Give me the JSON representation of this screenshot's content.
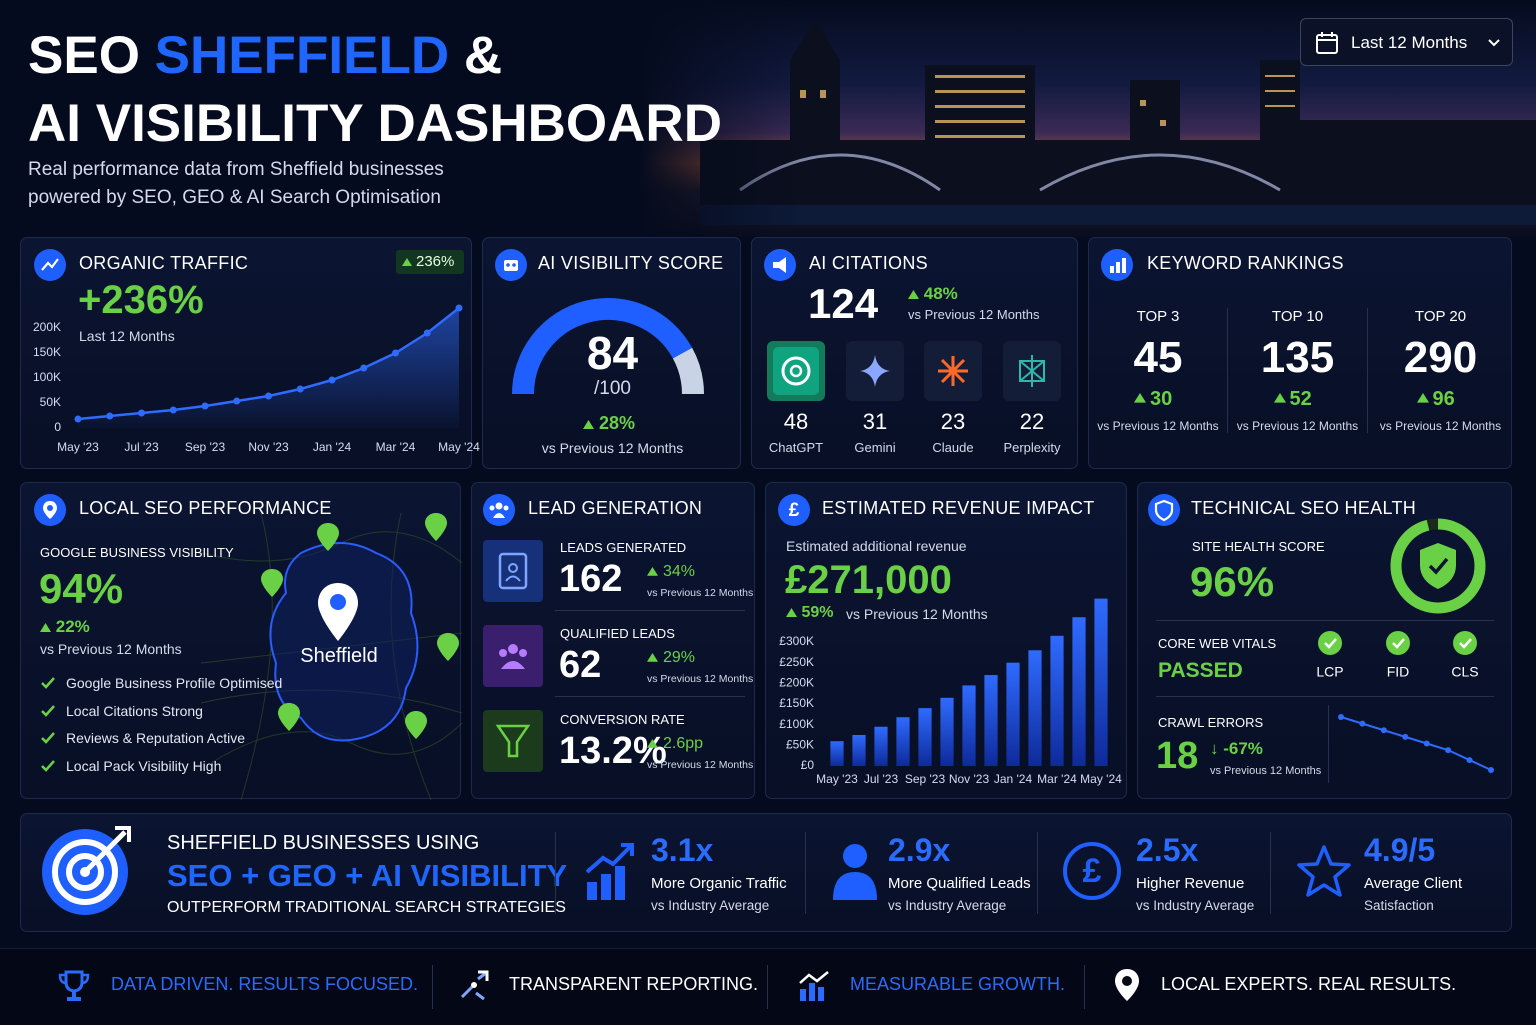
{
  "header": {
    "title_word_1": "SEO",
    "title_word_2": "SHEFFIELD",
    "title_word_3": "&",
    "title_line_2": "AI VISIBILITY DASHBOARD",
    "subtitle_line_1": "Real performance data from Sheffield businesses",
    "subtitle_line_2": "powered by SEO, GEO & AI Search Optimisation"
  },
  "date_filter": "Last 12 Months",
  "organic_traffic": {
    "title": "ORGANIC TRAFFIC",
    "badge": "236%",
    "headline": "+236%",
    "period": "Last 12 Months",
    "chart": {
      "type": "line",
      "categories": [
        "May '23",
        null,
        "Jul '23",
        null,
        "Sep '23",
        null,
        "Nov '23",
        null,
        "Jan '24",
        null,
        "Mar '24",
        null,
        "May '24"
      ],
      "values": [
        18000,
        24000,
        30000,
        36000,
        44000,
        54000,
        64000,
        78000,
        96000,
        120000,
        150000,
        190000,
        240000
      ],
      "color": "#2f6bff",
      "ylim": [
        0,
        250000
      ],
      "yticks": [
        0,
        {
          "value": 50000,
          "label": "50K"
        },
        {
          "value": 100000,
          "label": "100K"
        },
        {
          "value": 150000,
          "label": "150K"
        },
        {
          "value": 200000,
          "label": "200K"
        }
      ]
    }
  },
  "ai_visibility": {
    "title": "AI VISIBILITY SCORE",
    "score": 84,
    "scale": "/100",
    "change": "28%",
    "comparison": "vs Previous 12 Months"
  },
  "ai_citations": {
    "title": "AI CITATIONS",
    "total": 124,
    "change": "48%",
    "comparison": "vs Previous 12 Months",
    "platforms": [
      {
        "name": "ChatGPT",
        "count": 48
      },
      {
        "name": "Gemini",
        "count": 31
      },
      {
        "name": "Claude",
        "count": 23
      },
      {
        "name": "Perplexity",
        "count": 22
      }
    ]
  },
  "keyword_rankings": {
    "title": "KEYWORD RANKINGS",
    "groups": [
      {
        "label": "TOP 3",
        "count": 45,
        "change": 30,
        "comparison": "vs Previous 12 Months"
      },
      {
        "label": "TOP 10",
        "count": 135,
        "change": 52,
        "comparison": "vs Previous 12 Months"
      },
      {
        "label": "TOP 20",
        "count": 290,
        "change": 96,
        "comparison": "vs Previous 12 Months"
      }
    ]
  },
  "local_seo": {
    "title": "LOCAL SEO PERFORMANCE",
    "metric_label": "GOOGLE BUSINESS VISIBILITY",
    "value": "94%",
    "change": "22%",
    "comparison": "vs Previous 12 Months",
    "checklist": [
      "Google Business Profile Optimised",
      "Local Citations Strong",
      "Reviews & Reputation Active",
      "Local Pack Visibility High"
    ],
    "map_label": "Sheffield"
  },
  "lead_generation": {
    "title": "LEAD GENERATION",
    "items": [
      {
        "label": "LEADS GENERATED",
        "value": 162,
        "change": "34%",
        "comparison": "vs Previous 12 Months"
      },
      {
        "label": "QUALIFIED LEADS",
        "value": 62,
        "change": "29%",
        "comparison": "vs Previous 12 Months"
      },
      {
        "label": "CONVERSION RATE",
        "value": "13.2%",
        "change": "2.6pp",
        "comparison": "vs Previous 12 Months"
      }
    ]
  },
  "revenue": {
    "title": "ESTIMATED REVENUE IMPACT",
    "label": "Estimated additional revenue",
    "value": "£271,000",
    "change": "59%",
    "comparison": "vs Previous 12 Months",
    "chart": {
      "type": "bar",
      "categories": [
        "May '23",
        null,
        "Jul '23",
        null,
        "Sep '23",
        null,
        "Nov '23",
        null,
        "Jan '24",
        null,
        "Mar '24",
        null,
        "May '24"
      ],
      "values": [
        60000,
        75000,
        95000,
        118000,
        140000,
        165000,
        195000,
        220000,
        250000,
        280000,
        315000,
        360000,
        405000
      ],
      "color": "#2f6bff",
      "ylim": [
        0,
        420000
      ],
      "yticks": [
        {
          "value": 0,
          "label": "£0"
        },
        {
          "value": 50000,
          "label": "£50K"
        },
        {
          "value": 100000,
          "label": "£100K"
        },
        {
          "value": 150000,
          "label": "£150K"
        },
        {
          "value": 200000,
          "label": "£200K"
        },
        {
          "value": 250000,
          "label": "£250K"
        },
        {
          "value": 300000,
          "label": "£300K"
        }
      ]
    }
  },
  "technical_seo": {
    "title": "TECHNICAL SEO HEALTH",
    "score_label": "SITE HEALTH SCORE",
    "score": {
      "value": 96,
      "label": "96%"
    },
    "cwv_label": "CORE WEB VITALS",
    "cwv_status": "PASSED",
    "vitals": [
      "LCP",
      "FID",
      "CLS"
    ],
    "crawl_label": "CRAWL ERRORS",
    "crawl_errors": 18,
    "crawl_change": "-67%",
    "comparison": "vs Previous 12 Months",
    "crawl_trend": [
      34,
      32,
      30,
      28,
      26,
      24,
      21,
      18
    ]
  },
  "banner": {
    "line_1": "SHEFFIELD BUSINESSES USING",
    "line_2": "SEO + GEO + AI VISIBILITY",
    "line_3": "OUTPERFORM TRADITIONAL SEARCH STRATEGIES",
    "stats": [
      {
        "value": "3.1x",
        "label": "More Organic Traffic",
        "sub": "vs Industry Average"
      },
      {
        "value": "2.9x",
        "label": "More Qualified Leads",
        "sub": "vs Industry Average"
      },
      {
        "value": "2.5x",
        "label": "Higher Revenue",
        "sub": "vs Industry Average"
      },
      {
        "value": "4.9/5",
        "label": "Average Client",
        "sub": "Satisfaction"
      }
    ]
  },
  "footer": [
    "DATA DRIVEN. RESULTS FOCUSED.",
    "TRANSPARENT REPORTING.",
    "MEASURABLE GROWTH.",
    "LOCAL EXPERTS. REAL RESULTS."
  ]
}
